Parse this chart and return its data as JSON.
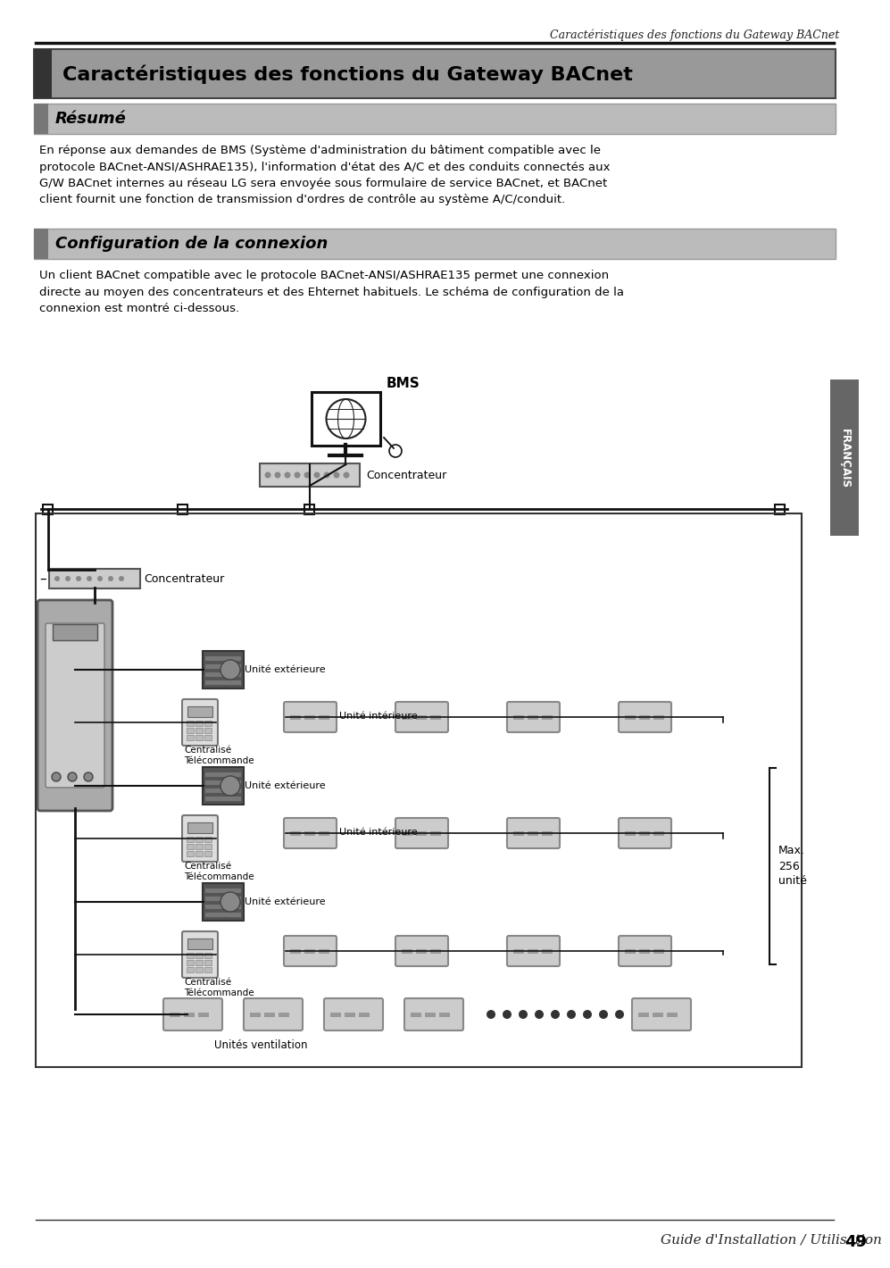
{
  "page_title_italic": "Caractéristiques des fonctions du Gateway BACnet",
  "main_title": "Caractéristiques des fonctions du Gateway BACnet",
  "section1_title": "Résumé",
  "section1_text": "En réponse aux demandes de BMS (Système d'administration du bâtiment compatible avec le\nprotocole BACnet-ANSI/ASHRAE135), l'information d'état des A/C et des conduits connectés aux\nG/W BACnet internes au réseau LG sera envoyée sous formulaire de service BACnet, et BACnet\nclient fournit une fonction de transmission d'ordres de contrôle au système A/C/conduit.",
  "section2_title": "Configuration de la connexion",
  "section2_text": "Un client BACnet compatible avec le protocole BACnet-ANSI/ASHRAE135 permet une connexion\ndirecte au moyen des concentrateurs et des Ehternet habituels. Le schéma de configuration de la\nconnexion est montré ci-dessous.",
  "footer_text": "Guide d'Installation / Utilisation",
  "footer_page": "49",
  "sidebar_text": "FRANÇAIS",
  "bg_color": "#ffffff",
  "body_text_color": "#000000",
  "diagram_label_bms": "BMS",
  "diagram_label_concentrateur1": "Concentrateur",
  "diagram_label_concentrateur2": "Concentrateur",
  "diagram_label_unite_ext1": "Unité extérieure",
  "diagram_label_centralise1": "Centralisé\nTélécommande",
  "diagram_label_unite_int1": "Unité intérieure",
  "diagram_label_unite_ext2": "Unité extérieure",
  "diagram_label_centralise2": "Centralisé\nTélécommande",
  "diagram_label_unite_int2": "Unité intérieure",
  "diagram_label_unite_ext3": "Unité extérieure",
  "diagram_label_centralise3": "Centralisé\nTélécommande",
  "diagram_label_unites_vent": "Unités ventilation",
  "diagram_label_max": "Max.\n256\nunité"
}
